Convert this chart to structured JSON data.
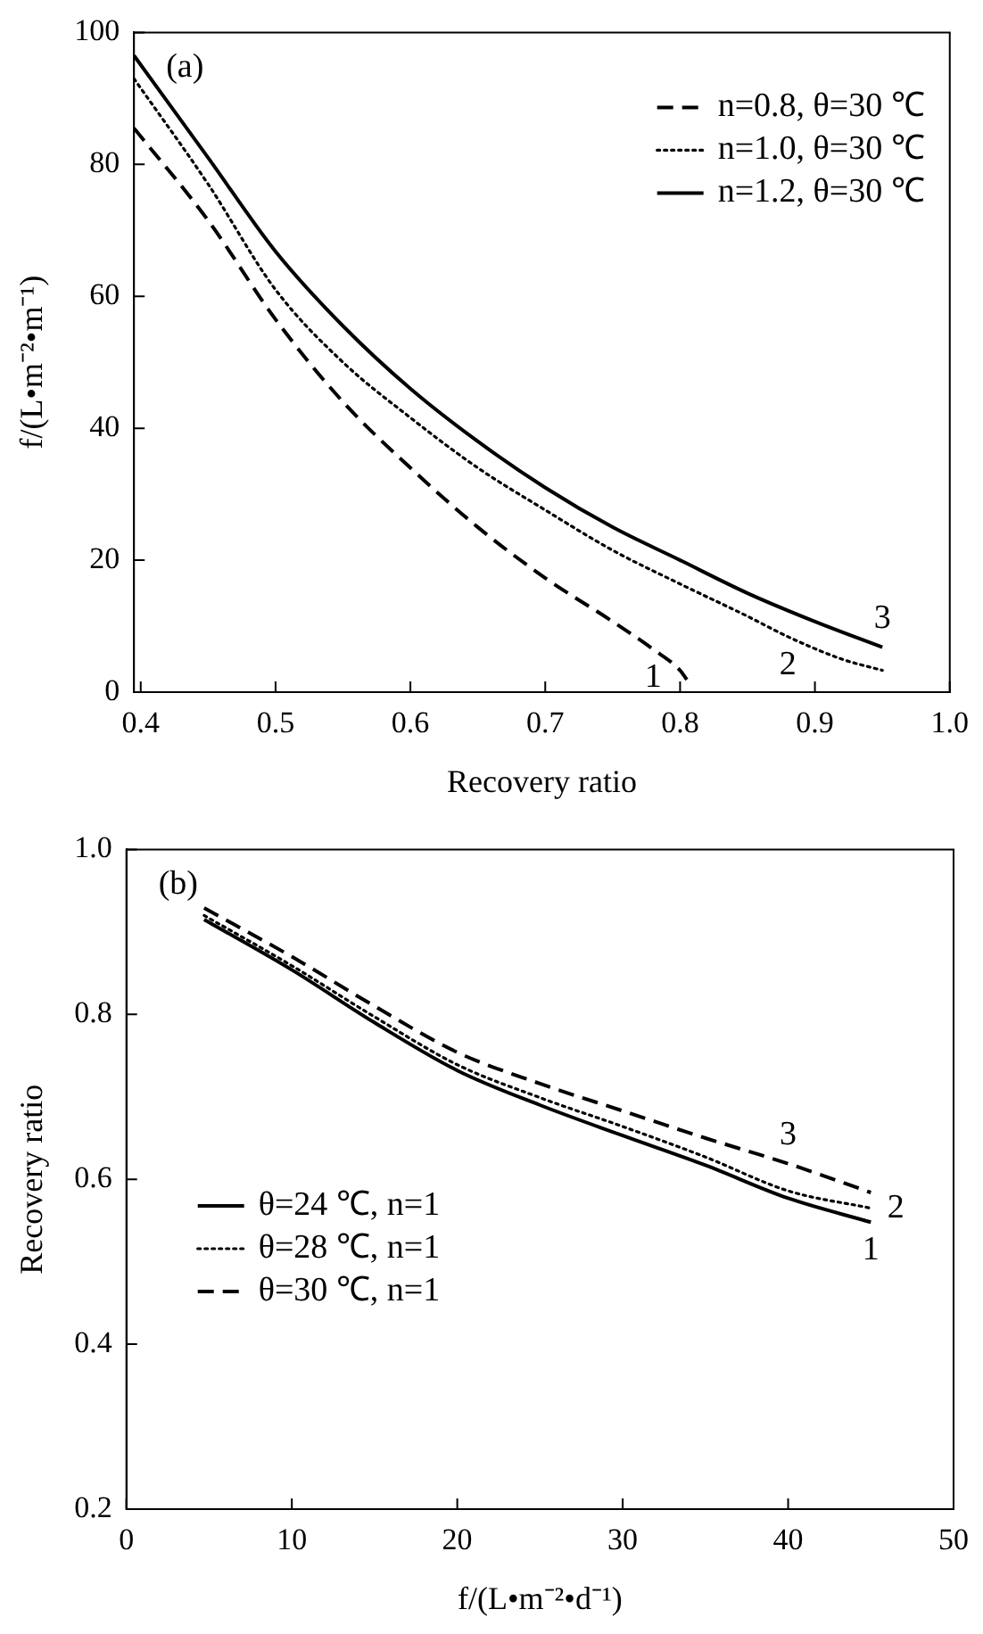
{
  "chart_data": [
    {
      "type": "line",
      "xlabel": "Recovery ratio",
      "ylabel": "f/(L•m⁻²•m⁻¹)",
      "xlim": [
        0.395,
        1.0
      ],
      "xticks": [
        {
          "value": 0.4,
          "label": "0.4"
        },
        {
          "value": 0.5,
          "label": "0.5"
        },
        {
          "value": 0.6,
          "label": "0.6"
        },
        {
          "value": 0.7,
          "label": "0.7"
        },
        {
          "value": 0.8,
          "label": "0.8"
        },
        {
          "value": 0.9,
          "label": "0.9"
        },
        {
          "value": 1.0,
          "label": "1.0"
        }
      ],
      "ylim": [
        0,
        100
      ],
      "yticks": [
        0,
        20,
        40,
        60,
        80,
        100
      ],
      "grid": false,
      "legend": "top right",
      "marker": "none",
      "series": [
        {
          "name": "n=0.8, θ=30 ℃",
          "color": "#000000",
          "line_style": "dashed",
          "x": [
            0.395,
            0.45,
            0.5,
            0.55,
            0.6,
            0.65,
            0.7,
            0.75,
            0.78,
            0.8,
            0.805
          ],
          "values": [
            85.5,
            71.5,
            56.5,
            44,
            34,
            25,
            17.3,
            10.7,
            6.5,
            3.3,
            1.9
          ]
        },
        {
          "name": "n=1.0, θ=30 ℃",
          "color": "#000000",
          "line_style": "dotted",
          "x": [
            0.395,
            0.45,
            0.5,
            0.55,
            0.6,
            0.65,
            0.7,
            0.75,
            0.8,
            0.85,
            0.88,
            0.92,
            0.95
          ],
          "values": [
            93,
            77,
            61,
            50,
            41.6,
            34,
            27.6,
            21.5,
            16.4,
            11.5,
            8.4,
            5,
            3.3
          ]
        },
        {
          "name": "n=1.2, θ=30 ℃",
          "color": "#000000",
          "line_style": "solid",
          "x": [
            0.395,
            0.45,
            0.5,
            0.55,
            0.6,
            0.65,
            0.7,
            0.75,
            0.8,
            0.85,
            0.9,
            0.95
          ],
          "values": [
            96.5,
            81,
            66.8,
            55.5,
            46,
            38,
            31,
            25,
            20,
            15,
            10.7,
            6.8
          ]
        }
      ],
      "annotations": [
        "(a)",
        {
          "text": "1",
          "x": 0.78,
          "y": 6.5
        },
        {
          "text": "2",
          "x": 0.88,
          "y": 8.4
        },
        {
          "text": "3",
          "x": 0.95,
          "y": 6.8
        }
      ]
    },
    {
      "type": "line",
      "xlabel": "f/(L•m⁻²•d⁻¹)",
      "ylabel": "Recovery ratio",
      "xlim": [
        0,
        50
      ],
      "xticks": [
        0,
        10,
        20,
        30,
        40,
        50
      ],
      "ylim": [
        0.2,
        1.0
      ],
      "yticks": [
        {
          "value": 0.2,
          "label": "0.2"
        },
        {
          "value": 0.4,
          "label": "0.4"
        },
        {
          "value": 0.6,
          "label": "0.6"
        },
        {
          "value": 0.8,
          "label": "0.8"
        },
        {
          "value": 1.0,
          "label": "1.0"
        }
      ],
      "grid": false,
      "legend": "bottom left",
      "marker": "none",
      "series": [
        {
          "name": "θ=24 ℃, n=1",
          "color": "#000000",
          "line_style": "solid",
          "x": [
            4.7,
            10,
            15,
            20,
            25,
            30,
            35,
            40,
            45
          ],
          "values": [
            0.915,
            0.854,
            0.79,
            0.732,
            0.69,
            0.653,
            0.617,
            0.577,
            0.548
          ]
        },
        {
          "name": "θ=28 ℃, n=1",
          "color": "#000000",
          "line_style": "dotted",
          "x": [
            4.7,
            10,
            15,
            20,
            25,
            30,
            35,
            40,
            45
          ],
          "values": [
            0.92,
            0.859,
            0.797,
            0.739,
            0.699,
            0.664,
            0.627,
            0.586,
            0.565
          ]
        },
        {
          "name": "θ=30 ℃, n=1",
          "color": "#000000",
          "line_style": "dashed",
          "x": [
            4.7,
            10,
            15,
            20,
            25,
            30,
            35,
            40,
            45
          ],
          "values": [
            0.929,
            0.87,
            0.81,
            0.754,
            0.716,
            0.683,
            0.65,
            0.619,
            0.584
          ]
        }
      ],
      "annotations": [
        "(b)",
        {
          "text": "1",
          "x": 45,
          "y": 0.548
        },
        {
          "text": "2",
          "x": 45,
          "y": 0.565
        },
        {
          "text": "3",
          "x": 40,
          "y": 0.619
        }
      ]
    }
  ]
}
